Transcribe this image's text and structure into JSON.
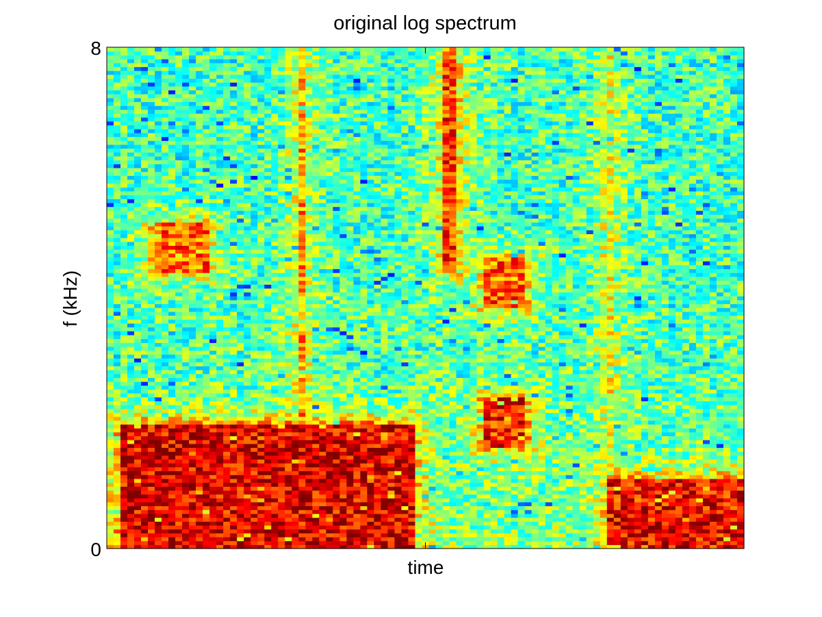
{
  "chart_data": {
    "type": "heatmap",
    "title": "original log spectrum",
    "xlabel": "time",
    "ylabel": "f (kHz)",
    "ylim": [
      0,
      8
    ],
    "y_ticks": [
      {
        "value": 0,
        "label": "0"
      },
      {
        "value": 8,
        "label": "8"
      }
    ],
    "x_ticks": [
      {
        "position": 0.5,
        "label": ""
      }
    ],
    "grid": false,
    "colormap": "jet",
    "colormap_stops": [
      "#00008f",
      "#0000ff",
      "#00ffff",
      "#ffff00",
      "#ff0000",
      "#800000"
    ],
    "time_frames": 93,
    "freq_bins": 129,
    "high_energy_regions": [
      {
        "t_start": 0.02,
        "t_end": 0.48,
        "f_start": 0.0,
        "f_end": 0.25,
        "level": 0.9
      },
      {
        "t_start": 0.07,
        "t_end": 0.16,
        "f_start": 0.55,
        "f_end": 0.65,
        "level": 0.78
      },
      {
        "t_start": 0.3,
        "t_end": 0.31,
        "f_start": 0.0,
        "f_end": 1.0,
        "level": 0.72
      },
      {
        "t_start": 0.53,
        "t_end": 0.55,
        "f_start": 0.55,
        "f_end": 1.0,
        "level": 0.82
      },
      {
        "t_start": 0.59,
        "t_end": 0.66,
        "f_start": 0.2,
        "f_end": 0.3,
        "level": 0.85
      },
      {
        "t_start": 0.59,
        "t_end": 0.66,
        "f_start": 0.48,
        "f_end": 0.58,
        "level": 0.78
      },
      {
        "t_start": 0.785,
        "t_end": 0.79,
        "f_start": 0.0,
        "f_end": 1.0,
        "level": 0.7
      },
      {
        "t_start": 0.79,
        "t_end": 1.0,
        "f_start": 0.0,
        "f_end": 0.14,
        "level": 0.88
      }
    ]
  }
}
